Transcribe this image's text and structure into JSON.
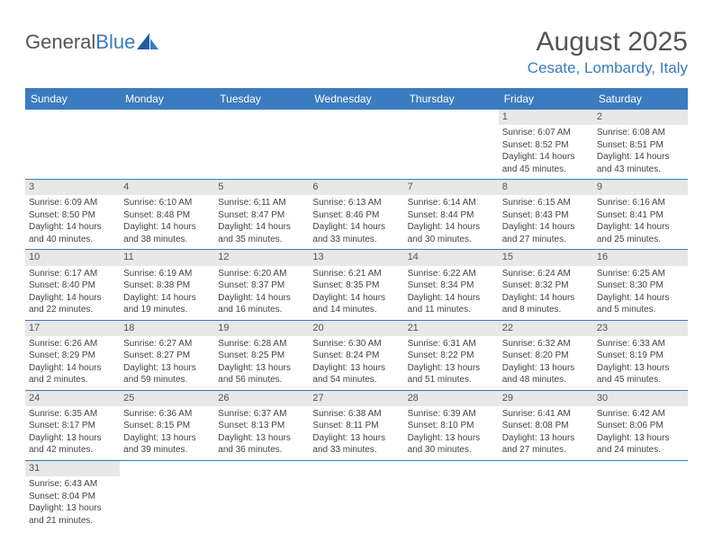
{
  "logo": {
    "part1": "General",
    "part2": "Blue"
  },
  "title": "August 2025",
  "location": "Cesate, Lombardy, Italy",
  "colors": {
    "header_bg": "#3b7bbf",
    "header_text": "#ffffff",
    "daynum_bg": "#e8e8e8",
    "row_divider": "#3b7bbf",
    "text": "#444444",
    "location_text": "#3b7bbf"
  },
  "weekdays": [
    "Sunday",
    "Monday",
    "Tuesday",
    "Wednesday",
    "Thursday",
    "Friday",
    "Saturday"
  ],
  "weeks": [
    [
      null,
      null,
      null,
      null,
      null,
      {
        "n": "1",
        "sr": "Sunrise: 6:07 AM",
        "ss": "Sunset: 8:52 PM",
        "d1": "Daylight: 14 hours",
        "d2": "and 45 minutes."
      },
      {
        "n": "2",
        "sr": "Sunrise: 6:08 AM",
        "ss": "Sunset: 8:51 PM",
        "d1": "Daylight: 14 hours",
        "d2": "and 43 minutes."
      }
    ],
    [
      {
        "n": "3",
        "sr": "Sunrise: 6:09 AM",
        "ss": "Sunset: 8:50 PM",
        "d1": "Daylight: 14 hours",
        "d2": "and 40 minutes."
      },
      {
        "n": "4",
        "sr": "Sunrise: 6:10 AM",
        "ss": "Sunset: 8:48 PM",
        "d1": "Daylight: 14 hours",
        "d2": "and 38 minutes."
      },
      {
        "n": "5",
        "sr": "Sunrise: 6:11 AM",
        "ss": "Sunset: 8:47 PM",
        "d1": "Daylight: 14 hours",
        "d2": "and 35 minutes."
      },
      {
        "n": "6",
        "sr": "Sunrise: 6:13 AM",
        "ss": "Sunset: 8:46 PM",
        "d1": "Daylight: 14 hours",
        "d2": "and 33 minutes."
      },
      {
        "n": "7",
        "sr": "Sunrise: 6:14 AM",
        "ss": "Sunset: 8:44 PM",
        "d1": "Daylight: 14 hours",
        "d2": "and 30 minutes."
      },
      {
        "n": "8",
        "sr": "Sunrise: 6:15 AM",
        "ss": "Sunset: 8:43 PM",
        "d1": "Daylight: 14 hours",
        "d2": "and 27 minutes."
      },
      {
        "n": "9",
        "sr": "Sunrise: 6:16 AM",
        "ss": "Sunset: 8:41 PM",
        "d1": "Daylight: 14 hours",
        "d2": "and 25 minutes."
      }
    ],
    [
      {
        "n": "10",
        "sr": "Sunrise: 6:17 AM",
        "ss": "Sunset: 8:40 PM",
        "d1": "Daylight: 14 hours",
        "d2": "and 22 minutes."
      },
      {
        "n": "11",
        "sr": "Sunrise: 6:19 AM",
        "ss": "Sunset: 8:38 PM",
        "d1": "Daylight: 14 hours",
        "d2": "and 19 minutes."
      },
      {
        "n": "12",
        "sr": "Sunrise: 6:20 AM",
        "ss": "Sunset: 8:37 PM",
        "d1": "Daylight: 14 hours",
        "d2": "and 16 minutes."
      },
      {
        "n": "13",
        "sr": "Sunrise: 6:21 AM",
        "ss": "Sunset: 8:35 PM",
        "d1": "Daylight: 14 hours",
        "d2": "and 14 minutes."
      },
      {
        "n": "14",
        "sr": "Sunrise: 6:22 AM",
        "ss": "Sunset: 8:34 PM",
        "d1": "Daylight: 14 hours",
        "d2": "and 11 minutes."
      },
      {
        "n": "15",
        "sr": "Sunrise: 6:24 AM",
        "ss": "Sunset: 8:32 PM",
        "d1": "Daylight: 14 hours",
        "d2": "and 8 minutes."
      },
      {
        "n": "16",
        "sr": "Sunrise: 6:25 AM",
        "ss": "Sunset: 8:30 PM",
        "d1": "Daylight: 14 hours",
        "d2": "and 5 minutes."
      }
    ],
    [
      {
        "n": "17",
        "sr": "Sunrise: 6:26 AM",
        "ss": "Sunset: 8:29 PM",
        "d1": "Daylight: 14 hours",
        "d2": "and 2 minutes."
      },
      {
        "n": "18",
        "sr": "Sunrise: 6:27 AM",
        "ss": "Sunset: 8:27 PM",
        "d1": "Daylight: 13 hours",
        "d2": "and 59 minutes."
      },
      {
        "n": "19",
        "sr": "Sunrise: 6:28 AM",
        "ss": "Sunset: 8:25 PM",
        "d1": "Daylight: 13 hours",
        "d2": "and 56 minutes."
      },
      {
        "n": "20",
        "sr": "Sunrise: 6:30 AM",
        "ss": "Sunset: 8:24 PM",
        "d1": "Daylight: 13 hours",
        "d2": "and 54 minutes."
      },
      {
        "n": "21",
        "sr": "Sunrise: 6:31 AM",
        "ss": "Sunset: 8:22 PM",
        "d1": "Daylight: 13 hours",
        "d2": "and 51 minutes."
      },
      {
        "n": "22",
        "sr": "Sunrise: 6:32 AM",
        "ss": "Sunset: 8:20 PM",
        "d1": "Daylight: 13 hours",
        "d2": "and 48 minutes."
      },
      {
        "n": "23",
        "sr": "Sunrise: 6:33 AM",
        "ss": "Sunset: 8:19 PM",
        "d1": "Daylight: 13 hours",
        "d2": "and 45 minutes."
      }
    ],
    [
      {
        "n": "24",
        "sr": "Sunrise: 6:35 AM",
        "ss": "Sunset: 8:17 PM",
        "d1": "Daylight: 13 hours",
        "d2": "and 42 minutes."
      },
      {
        "n": "25",
        "sr": "Sunrise: 6:36 AM",
        "ss": "Sunset: 8:15 PM",
        "d1": "Daylight: 13 hours",
        "d2": "and 39 minutes."
      },
      {
        "n": "26",
        "sr": "Sunrise: 6:37 AM",
        "ss": "Sunset: 8:13 PM",
        "d1": "Daylight: 13 hours",
        "d2": "and 36 minutes."
      },
      {
        "n": "27",
        "sr": "Sunrise: 6:38 AM",
        "ss": "Sunset: 8:11 PM",
        "d1": "Daylight: 13 hours",
        "d2": "and 33 minutes."
      },
      {
        "n": "28",
        "sr": "Sunrise: 6:39 AM",
        "ss": "Sunset: 8:10 PM",
        "d1": "Daylight: 13 hours",
        "d2": "and 30 minutes."
      },
      {
        "n": "29",
        "sr": "Sunrise: 6:41 AM",
        "ss": "Sunset: 8:08 PM",
        "d1": "Daylight: 13 hours",
        "d2": "and 27 minutes."
      },
      {
        "n": "30",
        "sr": "Sunrise: 6:42 AM",
        "ss": "Sunset: 8:06 PM",
        "d1": "Daylight: 13 hours",
        "d2": "and 24 minutes."
      }
    ],
    [
      {
        "n": "31",
        "sr": "Sunrise: 6:43 AM",
        "ss": "Sunset: 8:04 PM",
        "d1": "Daylight: 13 hours",
        "d2": "and 21 minutes."
      },
      null,
      null,
      null,
      null,
      null,
      null
    ]
  ]
}
